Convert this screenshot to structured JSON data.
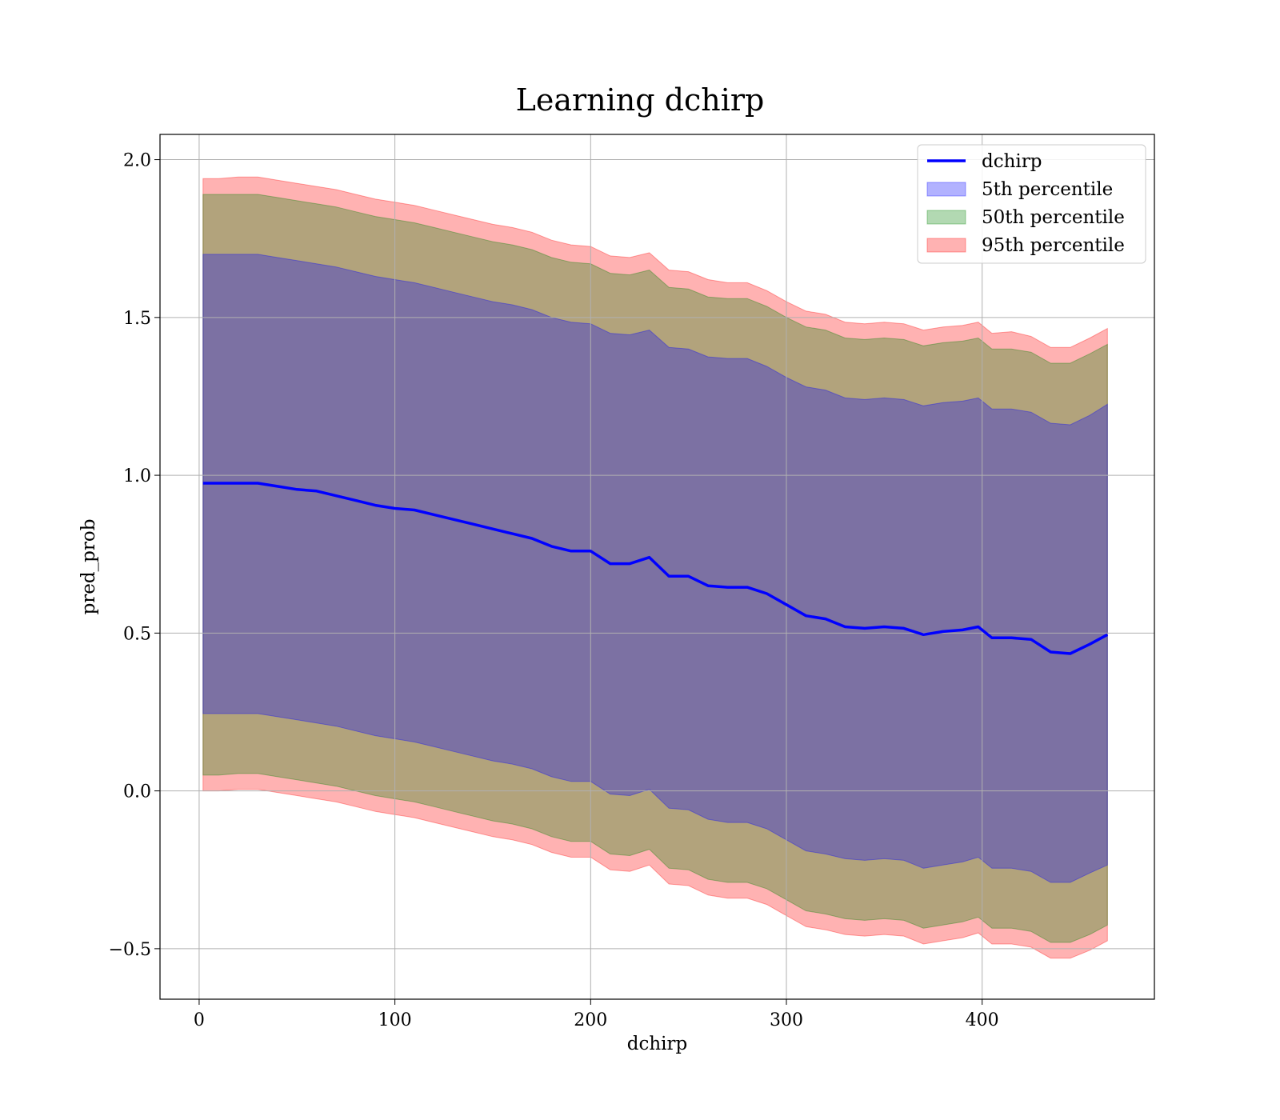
{
  "chart_data": {
    "type": "area",
    "title": "Learning dchirp",
    "xlabel": "dchirp",
    "ylabel": "pred_prob",
    "xlim": [
      -20,
      488
    ],
    "ylim": [
      -0.66,
      2.08
    ],
    "xticks": [
      0,
      100,
      200,
      300,
      400
    ],
    "yticks": [
      -0.5,
      0.0,
      0.5,
      1.0,
      1.5,
      2.0
    ],
    "xtick_labels": [
      "0",
      "100",
      "200",
      "300",
      "400"
    ],
    "ytick_labels": [
      "−0.5",
      "0.0",
      "0.5",
      "1.0",
      "1.5",
      "2.0"
    ],
    "grid": true,
    "legend_position": "top-right",
    "x": [
      2,
      10,
      20,
      30,
      40,
      50,
      60,
      70,
      80,
      90,
      100,
      110,
      120,
      130,
      140,
      150,
      160,
      170,
      180,
      190,
      200,
      210,
      220,
      230,
      240,
      250,
      260,
      270,
      280,
      290,
      300,
      310,
      320,
      330,
      340,
      350,
      360,
      370,
      380,
      390,
      398,
      405,
      415,
      425,
      435,
      445,
      455,
      464
    ],
    "series": [
      {
        "name": "dchirp",
        "kind": "line",
        "color": "#0000ff",
        "values": [
          0.975,
          0.975,
          0.975,
          0.975,
          0.965,
          0.955,
          0.95,
          0.935,
          0.92,
          0.905,
          0.895,
          0.89,
          0.875,
          0.86,
          0.845,
          0.83,
          0.815,
          0.8,
          0.775,
          0.76,
          0.76,
          0.72,
          0.72,
          0.74,
          0.68,
          0.68,
          0.65,
          0.645,
          0.645,
          0.625,
          0.59,
          0.555,
          0.545,
          0.52,
          0.515,
          0.52,
          0.515,
          0.495,
          0.505,
          0.51,
          0.52,
          0.485,
          0.485,
          0.48,
          0.44,
          0.435,
          0.465,
          0.495
        ]
      },
      {
        "name": "5th percentile",
        "kind": "band",
        "color": "#0000ff",
        "upper": [
          1.7,
          1.7,
          1.7,
          1.7,
          1.69,
          1.68,
          1.67,
          1.66,
          1.645,
          1.63,
          1.62,
          1.61,
          1.595,
          1.58,
          1.565,
          1.55,
          1.54,
          1.525,
          1.5,
          1.485,
          1.48,
          1.45,
          1.445,
          1.46,
          1.405,
          1.4,
          1.375,
          1.37,
          1.37,
          1.345,
          1.31,
          1.28,
          1.27,
          1.245,
          1.24,
          1.245,
          1.24,
          1.22,
          1.23,
          1.235,
          1.245,
          1.21,
          1.21,
          1.2,
          1.165,
          1.16,
          1.19,
          1.225
        ],
        "lower": [
          0.245,
          0.245,
          0.245,
          0.245,
          0.235,
          0.225,
          0.215,
          0.205,
          0.19,
          0.175,
          0.165,
          0.155,
          0.14,
          0.125,
          0.11,
          0.095,
          0.085,
          0.07,
          0.045,
          0.03,
          0.03,
          -0.01,
          -0.015,
          0.005,
          -0.055,
          -0.06,
          -0.09,
          -0.1,
          -0.1,
          -0.12,
          -0.155,
          -0.19,
          -0.2,
          -0.215,
          -0.22,
          -0.215,
          -0.22,
          -0.245,
          -0.235,
          -0.225,
          -0.21,
          -0.245,
          -0.245,
          -0.255,
          -0.29,
          -0.29,
          -0.26,
          -0.235
        ]
      },
      {
        "name": "50th percentile",
        "kind": "band",
        "color": "#008000",
        "upper": [
          1.89,
          1.89,
          1.89,
          1.89,
          1.88,
          1.87,
          1.86,
          1.85,
          1.835,
          1.82,
          1.81,
          1.8,
          1.785,
          1.77,
          1.755,
          1.74,
          1.73,
          1.715,
          1.69,
          1.675,
          1.67,
          1.64,
          1.635,
          1.65,
          1.595,
          1.59,
          1.565,
          1.56,
          1.56,
          1.535,
          1.5,
          1.47,
          1.46,
          1.435,
          1.43,
          1.435,
          1.43,
          1.41,
          1.42,
          1.425,
          1.435,
          1.4,
          1.4,
          1.39,
          1.355,
          1.355,
          1.385,
          1.415
        ],
        "lower": [
          0.05,
          0.05,
          0.055,
          0.055,
          0.045,
          0.035,
          0.025,
          0.015,
          0.0,
          -0.015,
          -0.025,
          -0.035,
          -0.05,
          -0.065,
          -0.08,
          -0.095,
          -0.105,
          -0.12,
          -0.145,
          -0.16,
          -0.16,
          -0.2,
          -0.205,
          -0.185,
          -0.245,
          -0.25,
          -0.28,
          -0.29,
          -0.29,
          -0.31,
          -0.345,
          -0.38,
          -0.39,
          -0.405,
          -0.41,
          -0.405,
          -0.41,
          -0.435,
          -0.425,
          -0.415,
          -0.4,
          -0.435,
          -0.435,
          -0.445,
          -0.48,
          -0.48,
          -0.455,
          -0.425
        ]
      },
      {
        "name": "95th percentile",
        "kind": "band",
        "color": "#ff0000",
        "upper": [
          1.94,
          1.94,
          1.945,
          1.945,
          1.935,
          1.925,
          1.915,
          1.905,
          1.89,
          1.875,
          1.865,
          1.855,
          1.84,
          1.825,
          1.81,
          1.795,
          1.785,
          1.77,
          1.745,
          1.73,
          1.725,
          1.695,
          1.69,
          1.705,
          1.65,
          1.645,
          1.62,
          1.61,
          1.61,
          1.585,
          1.55,
          1.52,
          1.51,
          1.485,
          1.48,
          1.485,
          1.48,
          1.46,
          1.47,
          1.475,
          1.485,
          1.45,
          1.455,
          1.44,
          1.405,
          1.405,
          1.435,
          1.465
        ],
        "lower": [
          0.0,
          0.0,
          0.005,
          0.005,
          -0.005,
          -0.015,
          -0.025,
          -0.035,
          -0.05,
          -0.065,
          -0.075,
          -0.085,
          -0.1,
          -0.115,
          -0.13,
          -0.145,
          -0.155,
          -0.17,
          -0.195,
          -0.21,
          -0.21,
          -0.25,
          -0.255,
          -0.235,
          -0.295,
          -0.3,
          -0.33,
          -0.34,
          -0.34,
          -0.36,
          -0.395,
          -0.43,
          -0.44,
          -0.455,
          -0.46,
          -0.455,
          -0.46,
          -0.485,
          -0.475,
          -0.465,
          -0.45,
          -0.485,
          -0.485,
          -0.495,
          -0.53,
          -0.53,
          -0.505,
          -0.475
        ]
      }
    ]
  }
}
